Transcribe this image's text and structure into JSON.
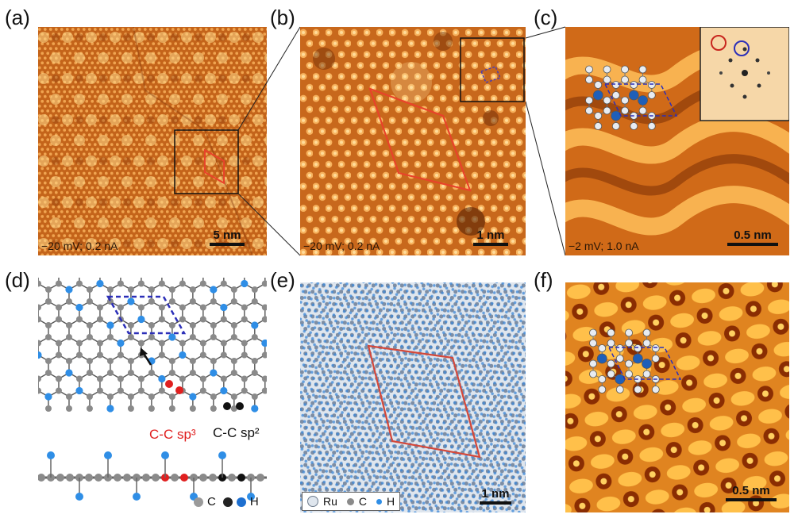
{
  "panel_labels": {
    "a": "(a)",
    "b": "(b)",
    "c": "(c)",
    "d": "(d)",
    "e": "(e)",
    "f": "(f)"
  },
  "captions": {
    "a": "−20 mV; 0.2 nA",
    "b": "−20 mV; 0.2 nA",
    "c": "−2 mV; 1.0 nA"
  },
  "scale_bars": {
    "a": "5 nm",
    "b": "1 nm",
    "c": "0.5 nm",
    "e": "1 nm",
    "f": "0.5 nm"
  },
  "panel_d": {
    "sp3_label": "C-C sp³",
    "sp2_label": "C-C sp²",
    "legend_c": "C",
    "legend_h": "H"
  },
  "panel_e_legend": {
    "ru": "Ru",
    "c": "C",
    "h": "H"
  },
  "colors": {
    "stm_orange": "#d2701e",
    "bright": "#ffd27a",
    "dark": "#6b2a05",
    "carbon": "#8a8a8a",
    "hydrogen": "#2f8ee6",
    "sp3_red": "#e02020",
    "sp2_black": "#111111",
    "cell_red": "#e8432a",
    "cell_blue": "#2c2fb8"
  }
}
